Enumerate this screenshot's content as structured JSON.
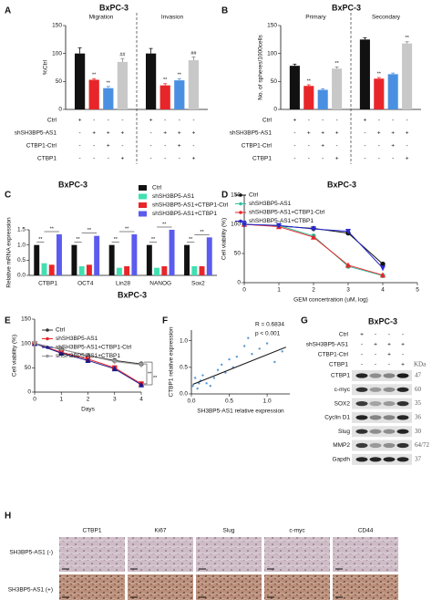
{
  "panel_labels": [
    "A",
    "B",
    "C",
    "D",
    "E",
    "F",
    "G",
    "H"
  ],
  "chart_data": [
    {
      "type": "bar",
      "title": "BxPC-3",
      "y_label": "%Ctrl",
      "categories": [
        "Migration",
        "Invasion"
      ],
      "ylim": [
        0,
        150
      ],
      "yticks": [
        0,
        50,
        100,
        150
      ],
      "series": [
        {
          "color": "#111111",
          "values": [
            100,
            100
          ],
          "errors": [
            10,
            9
          ]
        },
        {
          "color": "#e8262a",
          "values": [
            53,
            43
          ],
          "errors": [
            2,
            3
          ],
          "significance": [
            "**",
            "**"
          ]
        },
        {
          "color": "#4a90e2",
          "values": [
            38,
            52
          ],
          "errors": [
            3,
            3
          ],
          "significance": [
            "**",
            "**"
          ]
        },
        {
          "color": "#c8c8c8",
          "values": [
            85,
            88
          ],
          "errors": [
            6,
            6
          ],
          "significance": [
            "##",
            "##"
          ]
        }
      ],
      "conditions": [
        {
          "label": "Ctrl",
          "signs": [
            "+",
            "-",
            "-",
            "-"
          ]
        },
        {
          "label": "shSH3BP5-AS1",
          "signs": [
            "-",
            "+",
            "+",
            "+"
          ]
        },
        {
          "label": "CTBP1-Ctrl",
          "signs": [
            "-",
            "-",
            "+",
            "-"
          ]
        },
        {
          "label": "CTBP1",
          "signs": [
            "-",
            "-",
            "-",
            "+"
          ]
        }
      ]
    },
    {
      "type": "bar",
      "title": "BxPC-3",
      "y_label": "No. of spheres/1000cells",
      "categories": [
        "Primary",
        "Secondary"
      ],
      "ylim": [
        0,
        150
      ],
      "yticks": [
        0,
        50,
        100,
        150
      ],
      "series": [
        {
          "color": "#111111",
          "values": [
            78,
            125
          ],
          "errors": [
            3,
            3
          ]
        },
        {
          "color": "#e8262a",
          "values": [
            42,
            55
          ],
          "errors": [
            2,
            2
          ],
          "significance": [
            "**",
            "**"
          ]
        },
        {
          "color": "#4a90e2",
          "values": [
            35,
            63
          ],
          "errors": [
            2,
            2
          ]
        },
        {
          "color": "#c8c8c8",
          "values": [
            73,
            118
          ],
          "errors": [
            3,
            3
          ],
          "significance": [
            "**",
            "**"
          ]
        }
      ],
      "conditions": [
        {
          "label": "Ctrl",
          "signs": [
            "+",
            "-",
            "-",
            "-"
          ]
        },
        {
          "label": "shSH3BP5-AS1",
          "signs": [
            "-",
            "+",
            "+",
            "+"
          ]
        },
        {
          "label": "CTBP1-Ctrl",
          "signs": [
            "-",
            "-",
            "+",
            "-"
          ]
        },
        {
          "label": "CTBP1",
          "signs": [
            "-",
            "-",
            "-",
            "+"
          ]
        }
      ]
    },
    {
      "type": "bar",
      "title": "BxPC-3",
      "y_label": "Relative mRNA expression",
      "categories": [
        "CTBP1",
        "OCT4",
        "Lin28",
        "NANOG",
        "Sox2"
      ],
      "ylim": [
        0,
        1.5
      ],
      "yticks": [
        {
          "value": 0,
          "label": "0.0"
        },
        0.5,
        {
          "value": 1,
          "label": "1.0"
        },
        1.5
      ],
      "significance": [
        "**",
        "**"
      ],
      "series": [
        {
          "name": "Ctrl",
          "color": "#111111",
          "values": [
            1,
            1,
            1,
            1,
            1
          ]
        },
        {
          "name": "shSH3BP5-AS1",
          "color": "#40e0b0",
          "values": [
            0.4,
            0.3,
            0.25,
            0.25,
            0.3
          ]
        },
        {
          "name": "shSH3BP5-AS1+CTBP1-Ctrl",
          "color": "#e8262a",
          "values": [
            0.35,
            0.35,
            0.3,
            0.3,
            0.3
          ]
        },
        {
          "name": "shSH3BP5-AS1+CTBP1",
          "color": "#5b5bef",
          "values": [
            1.35,
            1.3,
            1.35,
            1.5,
            1.25
          ]
        }
      ]
    },
    {
      "type": "line",
      "title": "BxPC-3",
      "y_label": "Cell viability (%)",
      "x_label": "GEM concertration (uM, log)",
      "x": [
        0,
        1,
        2,
        3,
        4
      ],
      "xlim": [
        0,
        5
      ],
      "xticks": [
        0,
        1,
        2,
        3,
        4,
        5
      ],
      "ylim": [
        0,
        150
      ],
      "yticks": [
        0,
        50,
        100,
        150
      ],
      "series": [
        {
          "name": "Ctrl",
          "color": "#111111",
          "marker": "circle",
          "values": [
            100,
            97,
            93,
            85,
            32
          ]
        },
        {
          "name": "shSH3BP5-AS1",
          "color": "#2ec4a0",
          "marker": "circle",
          "values": [
            100,
            98,
            80,
            28,
            12
          ]
        },
        {
          "name": "shSH3BP5-AS1+CTBP1-Ctrl",
          "color": "#e8262a",
          "marker": "triangle",
          "values": [
            100,
            96,
            78,
            30,
            13
          ]
        },
        {
          "name": "shSH3BP5-AS1+CTBP1",
          "color": "#2a2ad0",
          "marker": "triangle-down",
          "values": [
            100,
            98,
            92,
            88,
            25
          ]
        }
      ]
    },
    {
      "type": "line",
      "title": "BxPC-3",
      "y_label": "Cell viability (%)",
      "x_label": "Days",
      "x": [
        0,
        1,
        2,
        3,
        4
      ],
      "xlim": [
        0,
        4
      ],
      "xticks": [
        0,
        1,
        2,
        3,
        4
      ],
      "ylim": [
        0,
        150
      ],
      "yticks": [
        0,
        50,
        100,
        150
      ],
      "annotations": [
        "**",
        "**"
      ],
      "series": [
        {
          "name": "Ctrl",
          "color": "#333333",
          "marker": "circle",
          "values": [
            100,
            88,
            75,
            65,
            58
          ]
        },
        {
          "name": "shSH3BP5-AS1",
          "color": "#e8262a",
          "marker": "square",
          "values": [
            100,
            82,
            68,
            50,
            17
          ]
        },
        {
          "name": "shSH3BP5-AS1+CTBP1-Ctrl",
          "color": "#1a1a8c",
          "marker": "triangle",
          "values": [
            100,
            80,
            65,
            48,
            15
          ]
        },
        {
          "name": "shSH3BP5-AS1+CTBP1",
          "color": "#999999",
          "marker": "triangle-down",
          "values": [
            100,
            88,
            75,
            63,
            56
          ]
        }
      ]
    },
    {
      "type": "scatter",
      "y_label": "CTBP1 relative expression",
      "x_label": "SH3BP5-AS1 relative expression",
      "stats": [
        "R = 0.6834",
        "p < 0.001"
      ],
      "xlim": [
        0,
        1.3
      ],
      "xticks": [
        {
          "value": 0,
          "label": "0.0"
        },
        0.5,
        {
          "value": 1,
          "label": "1.0"
        }
      ],
      "ylim": [
        0,
        1.2
      ],
      "yticks": [
        {
          "value": 0,
          "label": "0.0"
        },
        0.5,
        {
          "value": 1,
          "label": "1.0"
        }
      ],
      "color": "#5b9bd5",
      "x": [
        0.02,
        0.05,
        0.08,
        0.1,
        0.12,
        0.15,
        0.2,
        0.25,
        0.3,
        0.35,
        0.4,
        0.45,
        0.5,
        0.55,
        0.6,
        0.7,
        0.75,
        0.8,
        0.9,
        1.0,
        1.1,
        1.2
      ],
      "values": [
        0.15,
        0.3,
        0.1,
        0.2,
        0.25,
        0.35,
        0.2,
        0.15,
        0.3,
        0.45,
        0.55,
        0.4,
        0.65,
        0.5,
        0.7,
        0.9,
        1.05,
        0.75,
        0.85,
        0.95,
        0.6,
        0.8
      ],
      "fit": {
        "x": [
          0.02,
          1.25
        ],
        "y": [
          0.18,
          0.88
        ]
      }
    }
  ],
  "blot": {
    "title": "BxPC-3",
    "conditions": [
      {
        "label": "Ctrl",
        "signs": [
          "+",
          "-",
          "-",
          "-"
        ]
      },
      {
        "label": "shSH3BP5-AS1",
        "signs": [
          "-",
          "+",
          "+",
          "+"
        ]
      },
      {
        "label": "CTBP1-Ctrl",
        "signs": [
          "-",
          "-",
          "+",
          "-"
        ]
      },
      {
        "label": "CTBP1",
        "signs": [
          "-",
          "-",
          "-",
          "+"
        ]
      }
    ],
    "kda_header": "KDa",
    "proteins": [
      {
        "name": "CTBP1",
        "kda": 47
      },
      {
        "name": "c-myc",
        "kda": 60
      },
      {
        "name": "SOX2",
        "kda": 35
      },
      {
        "name": "Cyclin D1",
        "kda": 36
      },
      {
        "name": "Slug",
        "kda": 30
      },
      {
        "name": "MMP2",
        "kda": "64/72"
      },
      {
        "name": "Gapdh",
        "kda": 37
      }
    ]
  },
  "histology": {
    "columns": [
      "CTBP1",
      "Ki67",
      "Slug",
      "c-myc",
      "CD44"
    ],
    "rows": [
      "SH3BP5-AS1 (-)",
      "SH3BP5-AS1 (+)"
    ]
  }
}
